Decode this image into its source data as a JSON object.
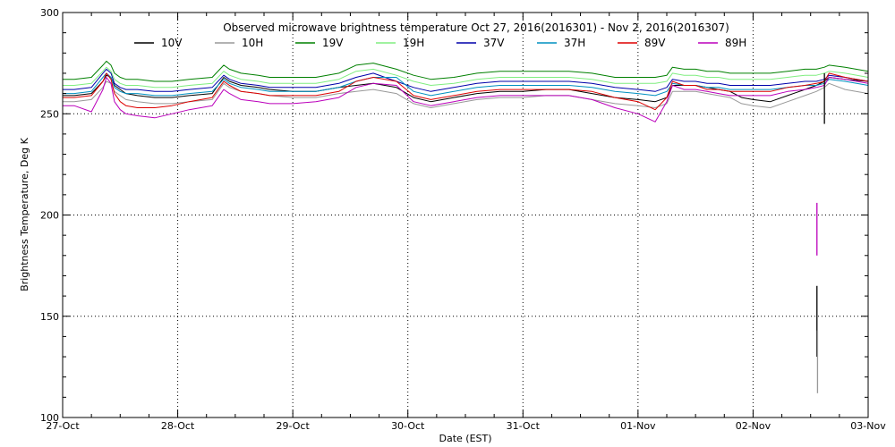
{
  "chart_data": {
    "type": "line",
    "title": "Observed microwave brightness temperature Oct 27, 2016(2016301) - Nov  2, 2016(2016307)",
    "xlabel": "Date (EST)",
    "ylabel": "Brightness Temperature, Deg K",
    "xlim": [
      "2016-10-27",
      "2016-11-03"
    ],
    "ylim": [
      100,
      300
    ],
    "x_ticks": [
      "27-Oct",
      "28-Oct",
      "29-Oct",
      "30-Oct",
      "31-Oct",
      "01-Nov",
      "02-Nov",
      "03-Nov"
    ],
    "y_ticks": [
      100,
      150,
      200,
      250,
      300
    ],
    "grid": true,
    "legend_position": "top",
    "x_day_values": [
      0,
      0.1,
      0.25,
      0.35,
      0.38,
      0.42,
      0.45,
      0.5,
      0.55,
      0.65,
      0.8,
      0.95,
      1.1,
      1.3,
      1.4,
      1.45,
      1.55,
      1.7,
      1.8,
      2.0,
      2.2,
      2.4,
      2.55,
      2.7,
      2.9,
      3.05,
      3.2,
      3.4,
      3.6,
      3.8,
      4.0,
      4.2,
      4.4,
      4.6,
      4.8,
      5.0,
      5.15,
      5.25,
      5.3,
      5.4,
      5.5,
      5.6,
      5.7,
      5.8,
      5.9,
      6.0,
      6.15,
      6.3,
      6.45,
      6.55,
      6.62,
      6.66,
      6.8,
      7.0
    ],
    "series": [
      {
        "name": "10V",
        "color": "#000000",
        "values": [
          259,
          259,
          260,
          266,
          269,
          268,
          264,
          262,
          260,
          259,
          258,
          258,
          259,
          260,
          268,
          266,
          264,
          263,
          262,
          261,
          261,
          263,
          264,
          265,
          263,
          258,
          256,
          258,
          260,
          261,
          261,
          262,
          262,
          260,
          258,
          257,
          256,
          258,
          264,
          264,
          264,
          263,
          262,
          261,
          258,
          257,
          256,
          259,
          262,
          264,
          266,
          268,
          267,
          266
        ]
      },
      {
        "name": "10H",
        "color": "#999999",
        "values": [
          256,
          256,
          257,
          263,
          266,
          265,
          261,
          259,
          257,
          256,
          255,
          255,
          256,
          257,
          265,
          263,
          261,
          260,
          259,
          258,
          258,
          260,
          261,
          262,
          260,
          255,
          253,
          255,
          257,
          258,
          258,
          259,
          259,
          257,
          255,
          254,
          253,
          255,
          261,
          261,
          261,
          260,
          259,
          258,
          255,
          254,
          253,
          256,
          259,
          261,
          263,
          265,
          262,
          260
        ]
      },
      {
        "name": "19V",
        "color": "#008000",
        "values": [
          267,
          267,
          268,
          274,
          276,
          274,
          270,
          268,
          267,
          267,
          266,
          266,
          267,
          268,
          274,
          272,
          270,
          269,
          268,
          268,
          268,
          270,
          274,
          275,
          272,
          269,
          267,
          268,
          270,
          271,
          271,
          271,
          271,
          270,
          268,
          268,
          268,
          269,
          273,
          272,
          272,
          271,
          271,
          270,
          270,
          270,
          270,
          271,
          272,
          272,
          273,
          274,
          273,
          271
        ]
      },
      {
        "name": "19H",
        "color": "#80ee80",
        "values": [
          264,
          264,
          265,
          271,
          273,
          271,
          267,
          265,
          264,
          264,
          263,
          263,
          264,
          265,
          271,
          269,
          267,
          266,
          265,
          265,
          265,
          267,
          271,
          272,
          269,
          266,
          264,
          265,
          267,
          268,
          268,
          268,
          268,
          267,
          265,
          265,
          265,
          266,
          270,
          269,
          269,
          268,
          268,
          267,
          267,
          267,
          267,
          268,
          269,
          269,
          270,
          271,
          270,
          268
        ]
      },
      {
        "name": "37V",
        "color": "#0000aa",
        "values": [
          262,
          262,
          263,
          270,
          272,
          270,
          265,
          263,
          262,
          262,
          261,
          261,
          262,
          263,
          269,
          267,
          265,
          264,
          263,
          263,
          263,
          265,
          268,
          270,
          266,
          263,
          261,
          263,
          265,
          266,
          266,
          266,
          266,
          265,
          263,
          262,
          261,
          263,
          267,
          266,
          266,
          265,
          265,
          264,
          264,
          264,
          264,
          265,
          266,
          266,
          267,
          269,
          268,
          266
        ]
      },
      {
        "name": "37H",
        "color": "#0090c0",
        "values": [
          260,
          260,
          261,
          268,
          270,
          268,
          263,
          261,
          260,
          260,
          259,
          259,
          260,
          261,
          267,
          265,
          263,
          262,
          261,
          261,
          261,
          263,
          266,
          268,
          268,
          261,
          259,
          261,
          263,
          264,
          264,
          264,
          264,
          263,
          261,
          260,
          259,
          261,
          265,
          264,
          264,
          263,
          263,
          262,
          262,
          262,
          262,
          263,
          264,
          264,
          265,
          267,
          266,
          264
        ]
      },
      {
        "name": "89V",
        "color": "#dd0000",
        "values": [
          258,
          258,
          259,
          266,
          270,
          267,
          260,
          256,
          254,
          253,
          253,
          254,
          256,
          258,
          266,
          264,
          261,
          260,
          259,
          259,
          259,
          261,
          266,
          268,
          266,
          259,
          257,
          259,
          261,
          262,
          262,
          262,
          262,
          261,
          258,
          256,
          252,
          258,
          266,
          264,
          264,
          262,
          262,
          261,
          261,
          261,
          261,
          263,
          264,
          265,
          266,
          270,
          268,
          266
        ]
      },
      {
        "name": "89H",
        "color": "#bb00bb",
        "values": [
          254,
          254,
          251,
          262,
          268,
          265,
          256,
          252,
          250,
          249,
          248,
          250,
          252,
          254,
          262,
          260,
          257,
          256,
          255,
          255,
          256,
          258,
          263,
          265,
          264,
          256,
          254,
          256,
          258,
          259,
          259,
          259,
          259,
          257,
          253,
          250,
          246,
          256,
          264,
          262,
          262,
          261,
          260,
          259,
          259,
          259,
          259,
          261,
          262,
          263,
          264,
          268,
          267,
          265
        ]
      }
    ],
    "spikes": [
      {
        "series": "89H",
        "x_day": 6.555,
        "y_from": 180,
        "y_to": 206
      },
      {
        "series": "10V",
        "x_day": 6.555,
        "y_from": 130,
        "y_to": 165
      },
      {
        "series": "10H",
        "x_day": 6.56,
        "y_from": 112,
        "y_to": 143
      },
      {
        "series": "10V",
        "x_day": 6.62,
        "y_from": 245,
        "y_to": 270
      }
    ]
  }
}
